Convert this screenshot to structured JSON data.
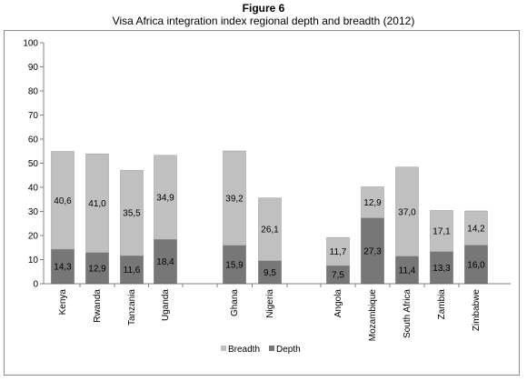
{
  "figure_number": "Figure 6",
  "chart_data": {
    "type": "bar",
    "stacked": true,
    "title": "Visa Africa integration index regional depth and breadth (2012)",
    "xlabel": "",
    "ylabel": "",
    "ylim": [
      0,
      100
    ],
    "yticks": [
      0,
      10,
      20,
      30,
      40,
      50,
      60,
      70,
      80,
      90,
      100
    ],
    "grid": false,
    "legend_position": "bottom",
    "categories": [
      "Kenya",
      "Rwanda",
      "Tanzania",
      "Uganda",
      "Ghana",
      "Nigeria",
      "Angola",
      "Mozambique",
      "South Africa",
      "Zambia",
      "Zimbabwe"
    ],
    "groups": [
      [
        "Kenya",
        "Rwanda",
        "Tanzania",
        "Uganda"
      ],
      [
        "Ghana",
        "Nigeria"
      ],
      [
        "Angola",
        "Mozambique",
        "South Africa",
        "Zambia",
        "Zimbabwe"
      ]
    ],
    "series": [
      {
        "name": "Depth",
        "color": "#777777",
        "values": [
          14.3,
          12.9,
          11.6,
          18.4,
          15.9,
          9.5,
          7.5,
          27.3,
          11.4,
          13.3,
          16.0
        ],
        "labels": [
          "14,3",
          "12,9",
          "11,6",
          "18,4",
          "15,9",
          "9,5",
          "7,5",
          "27,3",
          "11,4",
          "13,3",
          "16,0"
        ]
      },
      {
        "name": "Breadth",
        "color": "#c0c0c0",
        "values": [
          40.6,
          41.0,
          35.5,
          34.9,
          39.2,
          26.1,
          11.7,
          12.9,
          37.0,
          17.1,
          14.2
        ],
        "labels": [
          "40,6",
          "41,0",
          "35,5",
          "34,9",
          "39,2",
          "26,1",
          "11,7",
          "12,9",
          "37,0",
          "17,1",
          "14,2"
        ]
      }
    ],
    "legend": [
      "Breadth",
      "Depth"
    ]
  }
}
